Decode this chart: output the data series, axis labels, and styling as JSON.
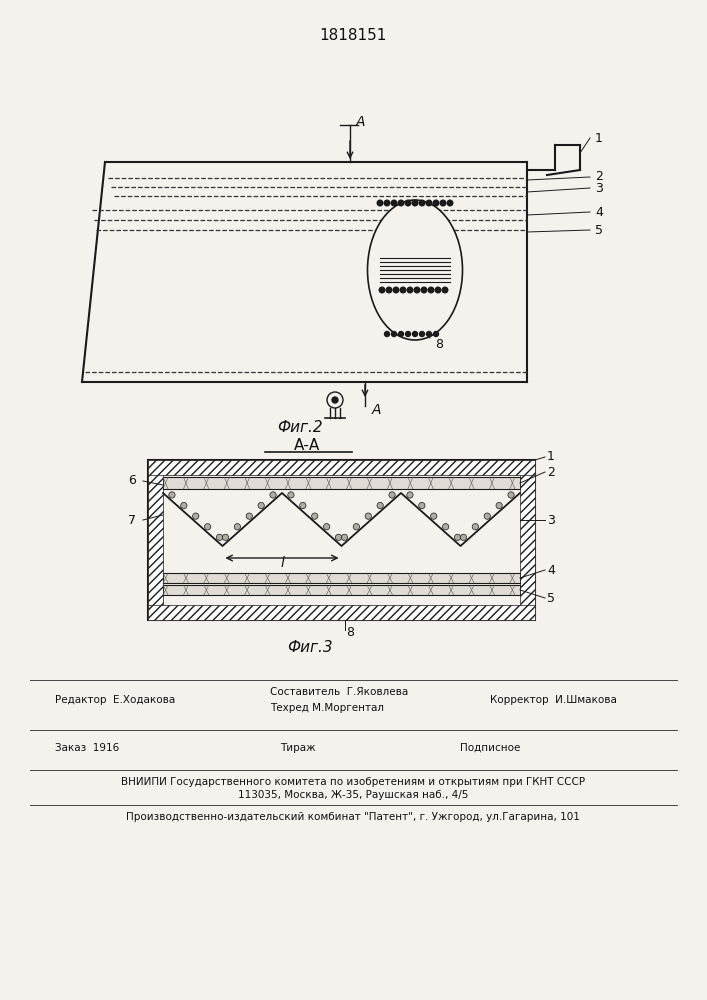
{
  "title": "1818151",
  "fig2_label": "Фиг.2",
  "fig3_label": "Фиг.3",
  "section_label": "А-А",
  "bg_color": "#f5f2ee",
  "line_color": "#1a1a1a",
  "text_color": "#111111",
  "footer": {
    "editor": "Редактор  Е.Ходакова",
    "composer": "Составитель  Г.Яковлева",
    "techred": "Техред М.Моргентал",
    "corrector": "Корректор  И.Шмакова",
    "order": "Заказ  1916",
    "tirazh": "Тираж",
    "podpisnoe": "Подписное",
    "vniiipi": "ВНИИПИ Государственного комитета по изобретениям и открытиям при ГКНТ СССР",
    "address": "113035, Москва, Ж-35, Раушская наб., 4/5",
    "patent": "Производственно-издательский комбинат \"Патент\", г. Ужгород, ул.Гагарина, 101"
  }
}
